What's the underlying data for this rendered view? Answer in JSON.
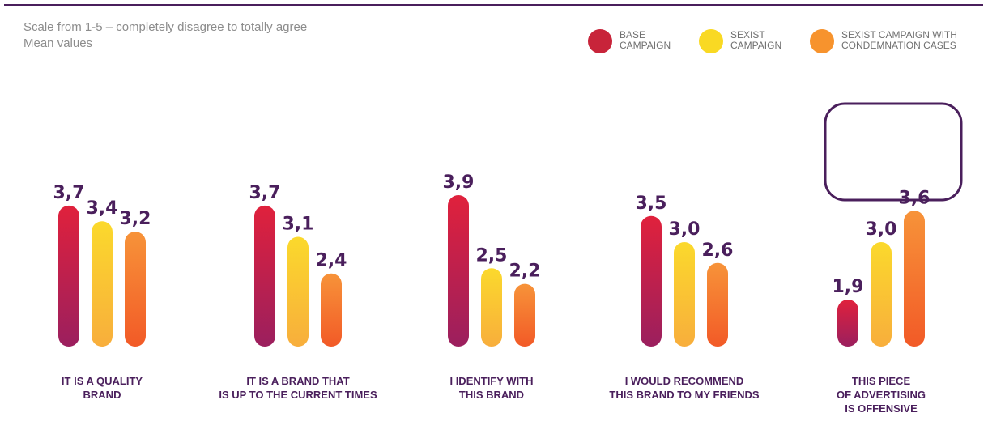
{
  "note": {
    "line1": "Scale from 1-5 – completely disagree to totally agree",
    "line2": "Mean values"
  },
  "legend": [
    {
      "label": "BASE\nCAMPAIGN",
      "color": "#c8243a"
    },
    {
      "label": "SEXIST\nCAMPAIGN",
      "color": "#f9d923"
    },
    {
      "label": "SEXIST CAMPAIGN WITH\nCONDEMNATION CASES",
      "color": "#f7932d"
    }
  ],
  "chart_data": {
    "type": "bar",
    "title": "",
    "xlabel": "",
    "ylabel": "",
    "ylim": [
      1,
      5
    ],
    "categories": [
      "IT IS A QUALITY BRAND",
      "IT IS A BRAND THAT IS UP TO THE CURRENT TIMES",
      "I IDENTIFY WITH THIS BRAND",
      "I WOULD RECOMMEND THIS BRAND TO MY FRIENDS",
      "THIS PIECE OF ADVERTISING IS OFFENSIVE"
    ],
    "category_lines": [
      [
        "IT IS A QUALITY",
        "BRAND"
      ],
      [
        "IT IS A BRAND THAT",
        "IS UP TO THE CURRENT TIMES"
      ],
      [
        "I IDENTIFY WITH",
        "THIS BRAND"
      ],
      [
        "I WOULD RECOMMEND",
        "THIS BRAND TO MY FRIENDS"
      ],
      [
        "THIS PIECE",
        "OF ADVERTISING",
        "IS OFFENSIVE"
      ]
    ],
    "series": [
      {
        "name": "BASE CAMPAIGN",
        "values": [
          3.7,
          3.7,
          3.9,
          3.5,
          1.9
        ],
        "labels": [
          "3,7",
          "3,7",
          "3,9",
          "3,5",
          "1,9"
        ],
        "color_top": "#e0213c",
        "color_bottom": "#9b1f5e"
      },
      {
        "name": "SEXIST CAMPAIGN",
        "values": [
          3.4,
          3.1,
          2.5,
          3.0,
          3.0
        ],
        "labels": [
          "3,4",
          "3,1",
          "2,5",
          "3,0",
          "3,0"
        ],
        "color_top": "#fbd92c",
        "color_bottom": "#f8ae3c"
      },
      {
        "name": "SEXIST CAMPAIGN WITH CONDEMNATION CASES",
        "values": [
          3.2,
          2.4,
          2.2,
          2.6,
          3.6
        ],
        "labels": [
          "3,2",
          "2,4",
          "2,2",
          "2,6",
          "3,6"
        ],
        "color_top": "#f79339",
        "color_bottom": "#f25a27"
      }
    ],
    "highlight_category_index": 4,
    "highlight_color": "#4a1f5c",
    "grid": false,
    "legend_position": "top-right"
  }
}
